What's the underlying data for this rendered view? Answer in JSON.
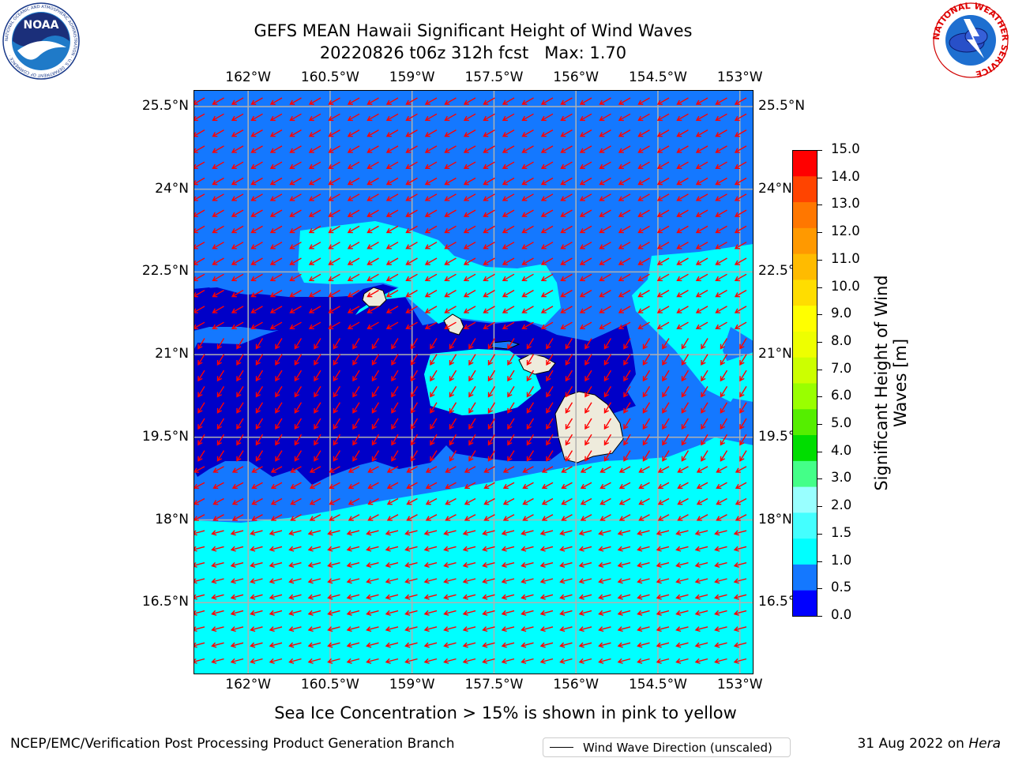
{
  "title": {
    "line1": "GEFS MEAN Hawaii Significant Height of Wind Waves",
    "line2": "20220826 t06z 312h fcst   Max: 1.70"
  },
  "logos": {
    "noaa": {
      "text": "NOAA",
      "ring_text": "NATIONAL OCEANIC AND ATMOSPHERIC ADMINISTRATION · U.S. DEPARTMENT OF COMMERCE ·"
    },
    "nws": {
      "ring_text": "NATIONAL WEATHER SERVICE"
    }
  },
  "axes": {
    "lon_labels": [
      "162°W",
      "160.5°W",
      "159°W",
      "157.5°W",
      "156°W",
      "154.5°W",
      "153°W"
    ],
    "lat_labels": [
      "25.5°N",
      "24°N",
      "22.5°N",
      "21°N",
      "19.5°N",
      "18°N",
      "16.5°N"
    ],
    "lon_range": [
      -163.0,
      -152.75
    ],
    "lat_range": [
      15.2,
      25.8
    ],
    "grid": true
  },
  "legend": {
    "label": "Wind Wave Direction (unscaled)"
  },
  "colorbar": {
    "title_line1": "Significant Height of Wind",
    "title_line2": "Waves [m]",
    "ticks": [
      "15.0",
      "14.0",
      "13.0",
      "12.0",
      "11.0",
      "10.0",
      "9.0",
      "8.0",
      "7.0",
      "6.0",
      "5.0",
      "4.0",
      "3.0",
      "2.0",
      "1.5",
      "1.0",
      "0.5",
      "0.0"
    ],
    "colors": [
      "#0000ff",
      "#1478ff",
      "#00ffff",
      "#44ffff",
      "#99ffff",
      "#44ff88",
      "#00dd00",
      "#55ee00",
      "#99ff00",
      "#ccff00",
      "#eeff00",
      "#ffff00",
      "#ffdd00",
      "#ffbb00",
      "#ff9900",
      "#ff7700",
      "#ff4400",
      "#ff0000"
    ]
  },
  "map_colors": {
    "deep": "#0000c8",
    "mid": "#1478ff",
    "light": "#00ffff",
    "land": "#eeebdc",
    "arrow": "#ff0000"
  },
  "caption": "Sea Ice Concentration > 15% is shown in pink to yellow",
  "footer": {
    "left": "NCEP/EMC/Verification Post Processing Product Generation Branch",
    "right_prefix": "31 Aug 2022 on ",
    "right_host": "Hera"
  }
}
